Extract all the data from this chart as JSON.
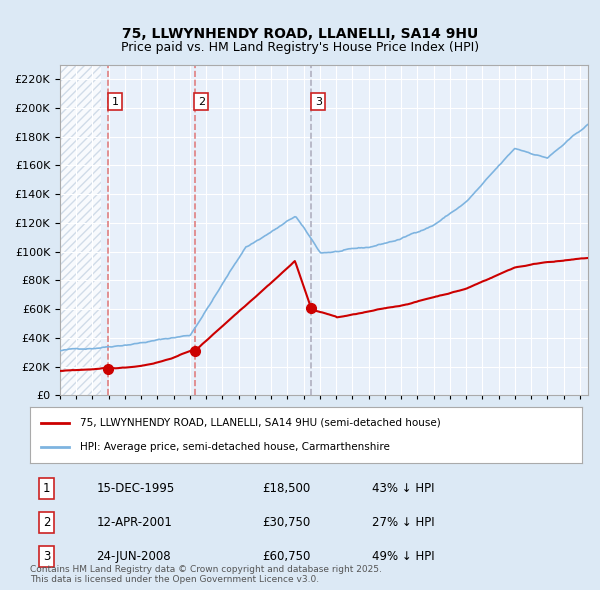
{
  "title_line1": "75, LLWYNHENDY ROAD, LLANELLI, SA14 9HU",
  "title_line2": "Price paid vs. HM Land Registry's House Price Index (HPI)",
  "bg_color": "#dce9f5",
  "plot_bg_color": "#e8f0fa",
  "hatch_color": "#c0cfe0",
  "grid_color": "#ffffff",
  "red_line_color": "#cc0000",
  "blue_line_color": "#7eb4e0",
  "purchase_dates": [
    1995.96,
    2001.28,
    2008.48
  ],
  "purchase_prices": [
    18500,
    30750,
    60750
  ],
  "purchase_labels": [
    "1",
    "2",
    "3"
  ],
  "vline_colors": [
    "#e08080",
    "#e08080",
    "#b0b0c0"
  ],
  "vline_styles": [
    "--",
    "--",
    "--"
  ],
  "legend_red": "75, LLWYNHENDY ROAD, LLANELLI, SA14 9HU (semi-detached house)",
  "legend_blue": "HPI: Average price, semi-detached house, Carmarthenshire",
  "table_data": [
    [
      "1",
      "15-DEC-1995",
      "£18,500",
      "43% ↓ HPI"
    ],
    [
      "2",
      "12-APR-2001",
      "£30,750",
      "27% ↓ HPI"
    ],
    [
      "3",
      "24-JUN-2008",
      "£60,750",
      "49% ↓ HPI"
    ]
  ],
  "footer": "Contains HM Land Registry data © Crown copyright and database right 2025.\nThis data is licensed under the Open Government Licence v3.0.",
  "ylim": [
    0,
    230000
  ],
  "yticks": [
    0,
    20000,
    40000,
    60000,
    80000,
    100000,
    120000,
    140000,
    160000,
    180000,
    200000,
    220000
  ],
  "xlim_start": 1993.0,
  "xlim_end": 2025.5
}
